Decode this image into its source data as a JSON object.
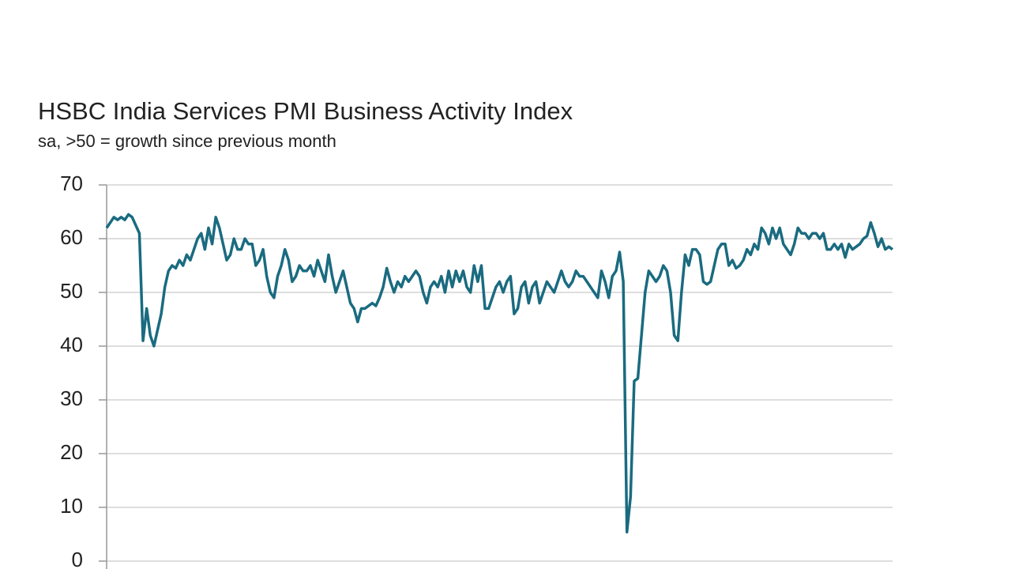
{
  "chart_data": {
    "type": "line",
    "title": "HSBC India Services PMI Business Activity Index",
    "subtitle": "sa, >50 = growth since previous month",
    "color": "#1a6b80",
    "ylim": [
      0,
      70
    ],
    "yticks": [
      0,
      10,
      20,
      30,
      40,
      50,
      60,
      70
    ],
    "grid": true,
    "values": [
      62,
      63,
      64,
      63.5,
      64,
      63.5,
      64.5,
      64,
      62.5,
      61,
      41,
      47,
      42,
      40,
      43,
      46,
      51,
      54,
      55,
      54.5,
      56,
      55,
      57,
      56,
      58,
      60,
      61,
      58,
      62,
      59,
      64,
      62,
      59,
      56,
      57,
      60,
      58,
      58,
      60,
      59,
      59,
      55,
      56,
      58,
      53,
      50,
      49,
      53,
      55,
      58,
      56,
      52,
      53,
      55,
      54,
      54,
      55,
      53,
      56,
      54,
      52,
      57,
      53,
      50,
      52,
      54,
      51,
      48,
      47,
      44.5,
      47,
      47,
      47.5,
      48,
      47.5,
      49,
      51,
      54.5,
      52,
      50,
      52,
      51,
      53,
      52,
      53,
      54,
      53,
      50,
      48,
      51,
      52,
      51,
      53,
      50,
      54,
      51,
      54,
      52,
      54,
      51,
      50,
      55,
      52,
      55,
      47,
      47,
      49,
      51,
      52,
      50,
      52,
      53,
      46,
      47,
      51,
      52,
      48,
      51,
      52,
      48,
      50,
      52,
      51,
      50,
      52,
      54,
      52,
      51,
      52,
      54,
      53,
      53,
      52,
      51,
      50,
      49,
      54,
      52,
      49,
      53,
      54,
      57.5,
      52,
      5.4,
      12,
      33.5,
      34,
      42,
      50,
      54,
      53,
      52,
      53,
      55,
      54,
      50,
      42,
      41,
      50,
      57,
      55,
      58,
      58,
      57,
      52,
      51.5,
      52,
      55,
      58,
      59,
      59,
      55,
      56,
      54.5,
      55,
      56,
      58,
      57,
      59,
      58,
      62,
      61,
      59,
      62,
      60,
      62,
      59,
      58,
      57,
      59,
      62,
      61,
      61,
      60,
      61,
      61,
      60,
      61,
      58,
      58,
      59,
      58,
      59,
      56.5,
      59,
      58,
      58.5,
      59,
      60,
      60.5,
      63,
      61,
      58.5,
      60,
      58,
      58.5,
      58
    ]
  }
}
